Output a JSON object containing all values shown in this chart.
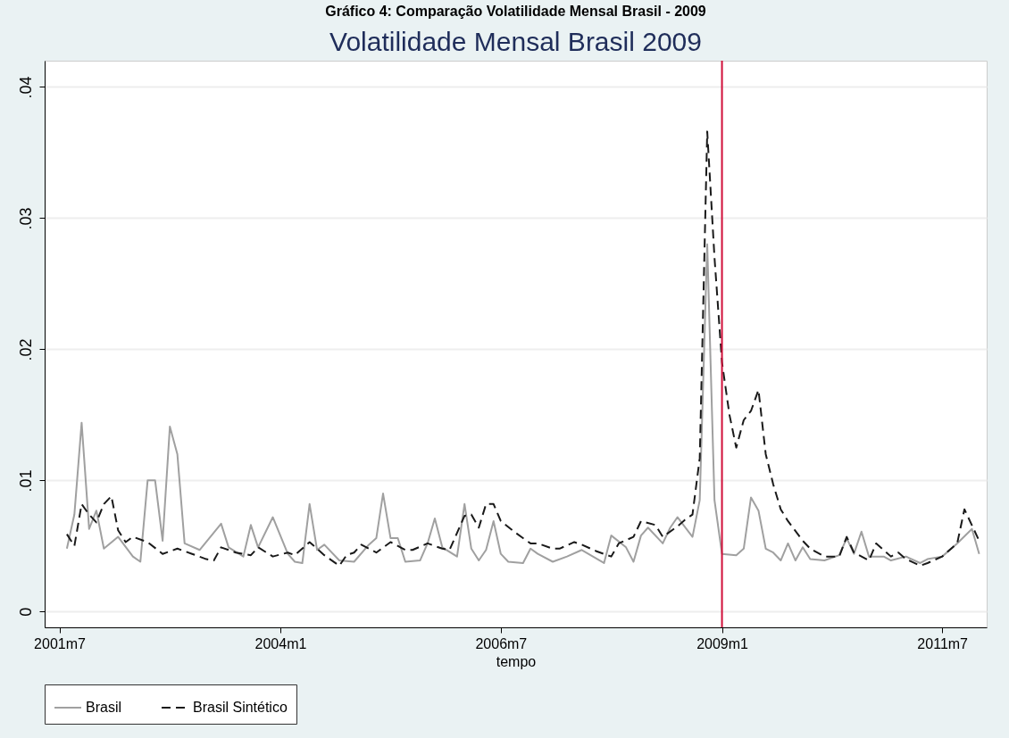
{
  "chart_data": {
    "type": "line",
    "title": "Gráfico 4: Comparação Volatilidade Mensal Brasil - 2009",
    "subtitle": "Volatilidade Mensal Brasil 2009",
    "xlabel": "tempo",
    "xlim": [
      "2001-05",
      "2012-01"
    ],
    "xticks": [
      {
        "value": "2001-07",
        "label": "2001m7"
      },
      {
        "value": "2004-01",
        "label": "2004m1"
      },
      {
        "value": "2006-07",
        "label": "2006m7"
      },
      {
        "value": "2009-01",
        "label": "2009m1"
      },
      {
        "value": "2011-07",
        "label": "2011m7"
      }
    ],
    "ylim": [
      -0.0012,
      0.042
    ],
    "yticks": [
      {
        "value": 0,
        "label": "0"
      },
      {
        "value": 0.01,
        "label": ".01"
      },
      {
        "value": 0.02,
        "label": ".02"
      },
      {
        "value": 0.03,
        "label": ".03"
      },
      {
        "value": 0.04,
        "label": ".04"
      }
    ],
    "grid": "y",
    "legend": "bottom",
    "ref_lines": [
      {
        "axis": "x",
        "value": "2009-01",
        "color": "#d0103a"
      }
    ],
    "series": [
      {
        "name": "Brasil",
        "color": "#a0a0a0",
        "line_style": "solid",
        "x": [
          "2001-08",
          "2001-09",
          "2001-10",
          "2001-11",
          "2001-12",
          "2002-01",
          "2002-03",
          "2002-05",
          "2002-06",
          "2002-07",
          "2002-08",
          "2002-09",
          "2002-10",
          "2002-11",
          "2002-12",
          "2003-02",
          "2003-05",
          "2003-06",
          "2003-08",
          "2003-09",
          "2003-10",
          "2003-12",
          "2004-02",
          "2004-03",
          "2004-04",
          "2004-05",
          "2004-06",
          "2004-07",
          "2004-09",
          "2004-11",
          "2005-01",
          "2005-02",
          "2005-03",
          "2005-04",
          "2005-05",
          "2005-06",
          "2005-08",
          "2005-09",
          "2005-10",
          "2005-11",
          "2006-01",
          "2006-02",
          "2006-03",
          "2006-04",
          "2006-05",
          "2006-06",
          "2006-07",
          "2006-08",
          "2006-10",
          "2006-11",
          "2006-12",
          "2007-02",
          "2007-04",
          "2007-06",
          "2007-09",
          "2007-10",
          "2007-12",
          "2008-01",
          "2008-02",
          "2008-03",
          "2008-05",
          "2008-06",
          "2008-07",
          "2008-09",
          "2008-10",
          "2008-11",
          "2008-12",
          "2009-01",
          "2009-03",
          "2009-04",
          "2009-05",
          "2009-06",
          "2009-07",
          "2009-08",
          "2009-09",
          "2009-10",
          "2009-11",
          "2009-12",
          "2010-01",
          "2010-03",
          "2010-05",
          "2010-06",
          "2010-07",
          "2010-08",
          "2010-09",
          "2010-11",
          "2010-12",
          "2011-02",
          "2011-04",
          "2011-05",
          "2011-07",
          "2011-09",
          "2011-11",
          "2011-12"
        ],
        "values": [
          0.0048,
          0.0074,
          0.0144,
          0.0063,
          0.0077,
          0.0048,
          0.0057,
          0.0042,
          0.0038,
          0.01,
          0.01,
          0.0054,
          0.0141,
          0.012,
          0.0052,
          0.0047,
          0.0067,
          0.0049,
          0.0042,
          0.0066,
          0.0049,
          0.0072,
          0.0044,
          0.0038,
          0.0037,
          0.0082,
          0.0047,
          0.0051,
          0.0039,
          0.0038,
          0.0051,
          0.0056,
          0.009,
          0.0056,
          0.0056,
          0.0038,
          0.0039,
          0.0052,
          0.0071,
          0.0049,
          0.0042,
          0.0082,
          0.0048,
          0.0039,
          0.0047,
          0.0069,
          0.0044,
          0.0038,
          0.0037,
          0.0048,
          0.0044,
          0.0038,
          0.0042,
          0.0047,
          0.0037,
          0.0058,
          0.0049,
          0.0038,
          0.0058,
          0.0064,
          0.0052,
          0.0064,
          0.0072,
          0.0057,
          0.0085,
          0.028,
          0.0085,
          0.0044,
          0.0043,
          0.0048,
          0.0087,
          0.0077,
          0.0048,
          0.0045,
          0.0039,
          0.0052,
          0.0039,
          0.0049,
          0.004,
          0.0039,
          0.0043,
          0.0056,
          0.0044,
          0.0061,
          0.0042,
          0.0042,
          0.0039,
          0.0042,
          0.0037,
          0.004,
          0.0042,
          0.0052,
          0.0063,
          0.0044
        ]
      },
      {
        "name": "Brasil Sintético",
        "color": "#1a1a1a",
        "line_style": "dashed",
        "x": [
          "2001-08",
          "2001-09",
          "2001-10",
          "2001-11",
          "2001-12",
          "2002-01",
          "2002-02",
          "2002-03",
          "2002-04",
          "2002-05",
          "2002-07",
          "2002-09",
          "2002-11",
          "2003-01",
          "2003-03",
          "2003-04",
          "2003-05",
          "2003-07",
          "2003-09",
          "2003-10",
          "2003-12",
          "2004-02",
          "2004-03",
          "2004-05",
          "2004-07",
          "2004-09",
          "2004-10",
          "2004-11",
          "2004-12",
          "2005-02",
          "2005-04",
          "2005-06",
          "2005-07",
          "2005-09",
          "2005-11",
          "2005-12",
          "2006-02",
          "2006-03",
          "2006-04",
          "2006-05",
          "2006-06",
          "2006-07",
          "2006-09",
          "2006-10",
          "2006-11",
          "2006-12",
          "2007-02",
          "2007-03",
          "2007-05",
          "2007-06",
          "2007-08",
          "2007-10",
          "2007-11",
          "2008-01",
          "2008-02",
          "2008-04",
          "2008-05",
          "2008-07",
          "2008-08",
          "2008-09",
          "2008-10",
          "2008-11",
          "2008-12",
          "2009-01",
          "2009-02",
          "2009-03",
          "2009-04",
          "2009-05",
          "2009-06",
          "2009-07",
          "2009-08",
          "2009-09",
          "2009-10",
          "2009-12",
          "2010-01",
          "2010-03",
          "2010-05",
          "2010-06",
          "2010-07",
          "2010-09",
          "2010-10",
          "2010-12",
          "2011-01",
          "2011-02",
          "2011-04",
          "2011-05",
          "2011-07",
          "2011-09",
          "2011-10",
          "2011-12"
        ],
        "values": [
          0.0059,
          0.005,
          0.0082,
          0.0074,
          0.0068,
          0.0082,
          0.0088,
          0.0062,
          0.0053,
          0.0057,
          0.0053,
          0.0044,
          0.0048,
          0.0044,
          0.004,
          0.0039,
          0.0049,
          0.0045,
          0.0043,
          0.0049,
          0.0042,
          0.0045,
          0.0043,
          0.0053,
          0.0043,
          0.0035,
          0.0043,
          0.0045,
          0.0051,
          0.0045,
          0.0053,
          0.0047,
          0.0047,
          0.0052,
          0.0048,
          0.0047,
          0.0073,
          0.0074,
          0.0064,
          0.0082,
          0.0082,
          0.0069,
          0.006,
          0.0056,
          0.0052,
          0.0052,
          0.0048,
          0.0048,
          0.0053,
          0.0051,
          0.0046,
          0.0042,
          0.0052,
          0.0057,
          0.0069,
          0.0066,
          0.0057,
          0.0065,
          0.007,
          0.0074,
          0.0117,
          0.0366,
          0.027,
          0.019,
          0.015,
          0.0125,
          0.0146,
          0.0153,
          0.0169,
          0.012,
          0.0097,
          0.0078,
          0.0069,
          0.0054,
          0.0048,
          0.0042,
          0.0042,
          0.0057,
          0.0045,
          0.0039,
          0.0052,
          0.0042,
          0.0045,
          0.004,
          0.0035,
          0.0037,
          0.0042,
          0.0052,
          0.0078,
          0.0054
        ]
      }
    ]
  }
}
